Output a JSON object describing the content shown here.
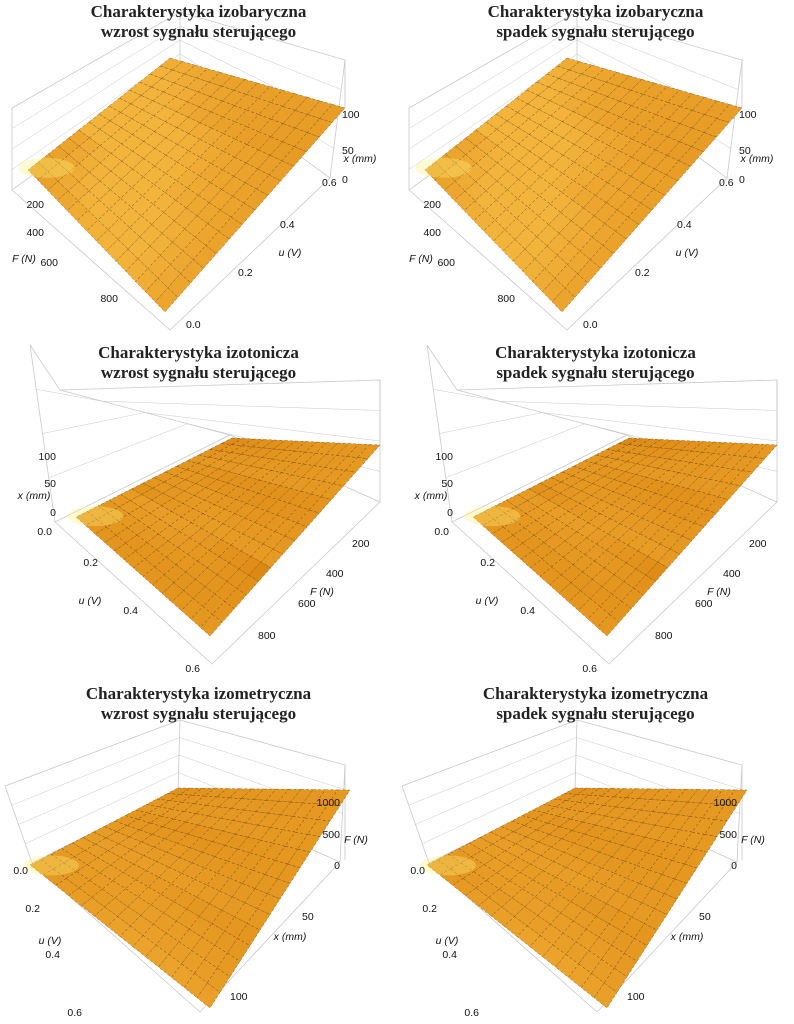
{
  "colors": {
    "surface_light": "#f3b43c",
    "surface_mid": "#e08d16",
    "surface_dark": "#8a4a08",
    "highlight": "#fff27a",
    "mesh": "#5a3306",
    "box": "#c8c8c8"
  },
  "chart_data": [
    {
      "type": "surface3d",
      "title": [
        "Charakterystyka izobaryczna",
        "wzrost sygnału sterującego"
      ],
      "axes": {
        "x": {
          "label": "F (N)",
          "ticks": [
            "200",
            "400",
            "600",
            "800"
          ]
        },
        "y": {
          "label": "u (V)",
          "ticks": [
            "0.0",
            "0.2",
            "0.4",
            "0.6"
          ]
        },
        "z": {
          "label": "x (mm)",
          "ticks": [
            "0",
            "50",
            "100"
          ]
        }
      },
      "xlim": [
        0,
        900
      ],
      "ylim": [
        0,
        0.6
      ],
      "zlim": [
        0,
        110
      ],
      "series": [
        {
          "values": [
            [
              110,
              105,
              100,
              95
            ],
            [
              60,
              90,
              100,
              104
            ],
            [
              10,
              50,
              85,
              100
            ],
            [
              0,
              15,
              60,
              95
            ]
          ]
        }
      ]
    },
    {
      "type": "surface3d",
      "title": [
        "Charakterystyka izobaryczna",
        "spadek sygnału sterującego"
      ],
      "axes": {
        "x": {
          "label": "F (N)",
          "ticks": [
            "200",
            "400",
            "600",
            "800"
          ]
        },
        "y": {
          "label": "u (V)",
          "ticks": [
            "0.0",
            "0.2",
            "0.4",
            "0.6"
          ]
        },
        "z": {
          "label": "x (mm)",
          "ticks": [
            "0",
            "50",
            "100"
          ]
        }
      },
      "xlim": [
        0,
        900
      ],
      "ylim": [
        0,
        0.6
      ],
      "zlim": [
        0,
        110
      ],
      "series": [
        {
          "values": [
            [
              110,
              105,
              100,
              96
            ],
            [
              65,
              92,
              100,
              104
            ],
            [
              12,
              55,
              88,
              100
            ],
            [
              0,
              18,
              62,
              96
            ]
          ]
        }
      ]
    },
    {
      "type": "surface3d",
      "title": [
        "Charakterystyka izotonicza",
        "wzrost sygnału sterującego"
      ],
      "axes": {
        "x": {
          "label": "u (V)",
          "ticks": [
            "0.0",
            "0.2",
            "0.4",
            "0.6"
          ]
        },
        "y": {
          "label": "F (N)",
          "ticks": [
            "200",
            "400",
            "600",
            "800"
          ]
        },
        "z": {
          "label": "x (mm)",
          "ticks": [
            "0",
            "50",
            "100"
          ]
        }
      },
      "xlim": [
        0,
        0.6
      ],
      "ylim": [
        0,
        900
      ],
      "zlim": [
        0,
        110
      ],
      "series": [
        {
          "values": [
            [
              0,
              0,
              0,
              0
            ],
            [
              40,
              20,
              5,
              0
            ],
            [
              95,
              70,
              40,
              15
            ],
            [
              110,
              105,
              95,
              80
            ]
          ]
        }
      ]
    },
    {
      "type": "surface3d",
      "title": [
        "Charakterystyka izotonicza",
        "spadek sygnału sterującego"
      ],
      "axes": {
        "x": {
          "label": "u (V)",
          "ticks": [
            "0.0",
            "0.2",
            "0.4",
            "0.6"
          ]
        },
        "y": {
          "label": "F (N)",
          "ticks": [
            "200",
            "400",
            "600",
            "800"
          ]
        },
        "z": {
          "label": "x (mm)",
          "ticks": [
            "0",
            "50",
            "100"
          ]
        }
      },
      "xlim": [
        0,
        0.6
      ],
      "ylim": [
        0,
        900
      ],
      "zlim": [
        0,
        110
      ],
      "series": [
        {
          "values": [
            [
              0,
              0,
              0,
              0
            ],
            [
              45,
              25,
              8,
              0
            ],
            [
              98,
              75,
              45,
              18
            ],
            [
              110,
              106,
              97,
              82
            ]
          ]
        }
      ]
    },
    {
      "type": "surface3d",
      "title": [
        "Charakterystyka izometryczna",
        "wzrost sygnału sterującego"
      ],
      "axes": {
        "x": {
          "label": "u (V)",
          "ticks": [
            "0.0",
            "0.2",
            "0.4",
            "0.6"
          ]
        },
        "y": {
          "label": "x (mm)",
          "ticks": [
            "50",
            "100"
          ]
        },
        "z": {
          "label": "F (N)",
          "ticks": [
            "0",
            "500",
            "1000"
          ]
        }
      },
      "xlim": [
        0,
        0.6
      ],
      "ylim": [
        0,
        110
      ],
      "zlim": [
        0,
        1100
      ],
      "series": [
        {
          "values": [
            [
              0,
              0,
              0,
              0
            ],
            [
              200,
              100,
              30,
              0
            ],
            [
              600,
              400,
              200,
              50
            ],
            [
              1000,
              800,
              500,
              200
            ]
          ]
        }
      ]
    },
    {
      "type": "surface3d",
      "title": [
        "Charakterystyka izometryczna",
        "spadek sygnału sterującego"
      ],
      "axes": {
        "x": {
          "label": "u (V)",
          "ticks": [
            "0.0",
            "0.2",
            "0.4",
            "0.6"
          ]
        },
        "y": {
          "label": "x (mm)",
          "ticks": [
            "50",
            "100"
          ]
        },
        "z": {
          "label": "F (N)",
          "ticks": [
            "0",
            "500",
            "1000"
          ]
        }
      },
      "xlim": [
        0,
        0.6
      ],
      "ylim": [
        0,
        110
      ],
      "zlim": [
        0,
        1100
      ],
      "series": [
        {
          "values": [
            [
              0,
              0,
              0,
              0
            ],
            [
              220,
              110,
              35,
              0
            ],
            [
              620,
              420,
              210,
              55
            ],
            [
              1020,
              820,
              520,
              210
            ]
          ]
        }
      ]
    }
  ]
}
